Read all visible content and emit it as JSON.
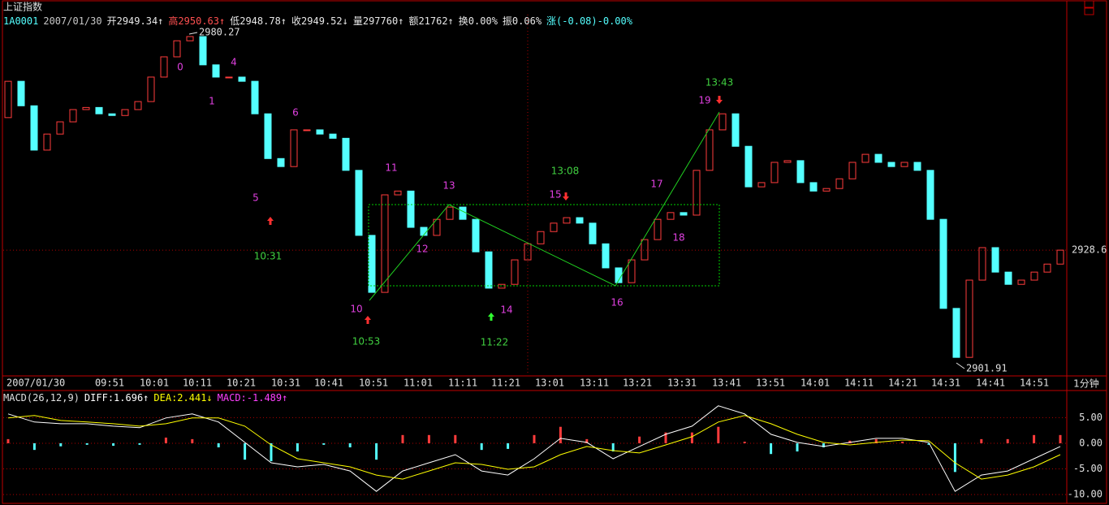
{
  "header": {
    "title": "上证指数",
    "info": [
      "1A0001",
      "2007/01/30",
      "开2949.34↑",
      "高2950.63↑",
      "低2948.78↑",
      "收2949.52↓",
      "量297760↑",
      "额21762↑",
      "换0.00%",
      "振0.06%",
      "涨(-0.08)-0.00%"
    ]
  },
  "period": "1分钟",
  "chart_data": [
    {
      "type": "candlestick",
      "up_color": "#ff3c3c",
      "down_color": "#54ffff",
      "open": [
        2960.0,
        2968.6,
        2962.8,
        2952.3,
        2956.1,
        2959.0,
        2961.9,
        2962.4,
        2960.9,
        2960.5,
        2961.9,
        2963.8,
        2969.6,
        2974.4,
        2978.2,
        2979.2,
        2972.5,
        2969.6,
        2969.6,
        2968.6,
        2960.9,
        2950.3,
        2948.4,
        2957.1,
        2957.1,
        2956.1,
        2955.1,
        2947.5,
        2932.1,
        2918.6,
        2941.7,
        2942.6,
        2934.0,
        2932.1,
        2935.9,
        2938.8,
        2935.9,
        2928.2,
        2919.6,
        2920.5,
        2926.3,
        2930.1,
        2933.0,
        2935.0,
        2936.3,
        2935.0,
        2930.1,
        2924.4,
        2920.9,
        2926.3,
        2931.1,
        2935.9,
        2937.5,
        2936.9,
        2947.5,
        2957.1,
        2960.9,
        2953.2,
        2943.6,
        2944.6,
        2949.4,
        2949.8,
        2944.6,
        2942.6,
        2943.2,
        2945.5,
        2949.4,
        2951.3,
        2949.4,
        2948.4,
        2949.4,
        2947.5,
        2935.9,
        2914.8,
        2903.2,
        2921.5,
        2929.2,
        2923.4,
        2920.5,
        2921.5,
        2923.4,
        2925.3
      ],
      "close": [
        2968.6,
        2962.8,
        2952.3,
        2956.1,
        2959.0,
        2961.9,
        2962.4,
        2960.9,
        2960.5,
        2961.9,
        2963.8,
        2969.6,
        2974.4,
        2978.2,
        2979.2,
        2972.5,
        2969.6,
        2969.6,
        2968.6,
        2960.9,
        2950.3,
        2948.4,
        2957.1,
        2957.1,
        2956.1,
        2955.1,
        2947.5,
        2932.1,
        2918.6,
        2941.7,
        2942.6,
        2934.0,
        2932.1,
        2935.9,
        2938.8,
        2935.9,
        2928.2,
        2919.6,
        2920.5,
        2926.3,
        2930.1,
        2933.0,
        2935.0,
        2936.3,
        2935.0,
        2930.1,
        2924.4,
        2920.9,
        2926.3,
        2931.1,
        2935.9,
        2937.5,
        2936.9,
        2947.5,
        2957.1,
        2960.9,
        2953.2,
        2943.6,
        2944.6,
        2949.4,
        2949.8,
        2944.6,
        2942.6,
        2943.2,
        2945.5,
        2949.4,
        2951.3,
        2949.4,
        2948.4,
        2949.4,
        2947.5,
        2935.9,
        2914.8,
        2903.2,
        2921.5,
        2929.2,
        2923.4,
        2920.5,
        2921.5,
        2923.4,
        2925.3,
        2928.6
      ],
      "ylim": [
        2899.0,
        2984.4
      ],
      "yticks": [
        2928.6
      ],
      "grid": true,
      "extremes": [
        2980.27,
        2901.91
      ],
      "time_labels": [
        "2007/01/30",
        "09:51",
        "10:01",
        "10:11",
        "10:21",
        "10:31",
        "10:41",
        "10:51",
        "11:01",
        "11:11",
        "11:21",
        "13:01",
        "13:11",
        "13:21",
        "13:31",
        "13:41",
        "13:51",
        "14:01",
        "14:11",
        "14:21",
        "14:31",
        "14:41",
        "14:51"
      ],
      "wave_labels": [
        "0",
        "1",
        "4",
        "5",
        "6",
        "10",
        "11",
        "12",
        "13",
        "14",
        "15",
        "16",
        "17",
        "18",
        "19"
      ],
      "time_marks": [
        "10:31",
        "10:53",
        "11:22",
        "13:08",
        "13:43"
      ]
    },
    {
      "type": "macd",
      "title": "MACD(26,12,9)",
      "up_color": "#ff3c3c",
      "down_color": "#54ffff",
      "ylim": [
        -11.4,
        7.9
      ],
      "yticks": [
        {
          "value": 5,
          "label": "5.00"
        },
        {
          "value": 0,
          "label": "0.00"
        },
        {
          "value": -5,
          "label": "-5.00"
        },
        {
          "value": -10,
          "label": "-10.00"
        }
      ],
      "series": [
        {
          "name": "DIFF:1.696↑",
          "color": "#ffffff",
          "values": [
            5.71,
            4.13,
            3.81,
            3.81,
            3.33,
            3.02,
            4.92,
            5.71,
            4.13,
            0.16,
            -3.81,
            -4.6,
            -4.13,
            -5.4,
            -9.37,
            -5.4,
            -3.81,
            -2.22,
            -5.4,
            -6.19,
            -3.02,
            0.95,
            0.16,
            -3.02,
            -0.63,
            1.75,
            3.33,
            7.3,
            5.71,
            1.75,
            0.16,
            -0.63,
            0.16,
            0.95,
            0.95,
            0.16,
            -9.37,
            -6.19,
            -5.4,
            -3.02,
            -0.63
          ]
        },
        {
          "name": "DEA:2.441↓",
          "color": "#ffff00",
          "values": [
            4.92,
            5.4,
            4.44,
            4.13,
            3.81,
            3.33,
            3.81,
            4.92,
            4.92,
            3.33,
            -0.32,
            -3.02,
            -3.81,
            -4.6,
            -6.19,
            -6.98,
            -5.4,
            -3.81,
            -4.13,
            -5.08,
            -4.6,
            -2.22,
            -0.63,
            -1.43,
            -1.9,
            -0.32,
            1.27,
            4.13,
            5.4,
            3.81,
            1.75,
            0.16,
            -0.32,
            0.16,
            0.63,
            0.48,
            -3.81,
            -6.98,
            -6.19,
            -4.6,
            -2.22
          ]
        },
        {
          "name": "MACD:-1.489↑",
          "color": "#ff40ff",
          "values": [
            0.8,
            -1.3,
            -0.6,
            -0.3,
            -0.5,
            -0.3,
            1.1,
            0.8,
            -0.8,
            -3.2,
            -3.5,
            -1.6,
            -0.3,
            -0.8,
            -3.2,
            1.6,
            1.6,
            1.6,
            -1.3,
            -1.1,
            1.6,
            3.2,
            0.8,
            -1.6,
            1.3,
            2.1,
            2.1,
            3.2,
            0.3,
            -2.1,
            -1.6,
            -0.8,
            0.5,
            0.8,
            0.3,
            -0.3,
            -5.6,
            0.8,
            0.8,
            1.6,
            1.6
          ]
        }
      ]
    }
  ]
}
